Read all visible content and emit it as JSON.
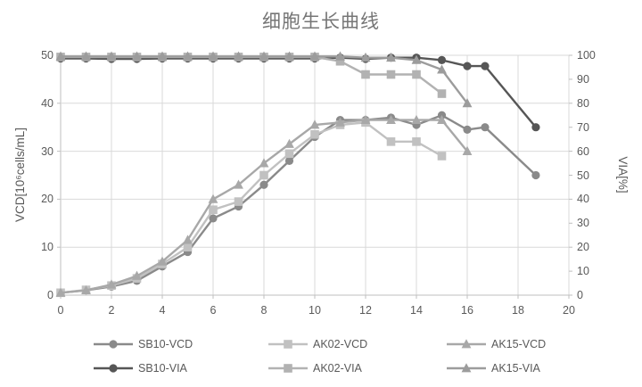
{
  "chart_data": {
    "type": "line",
    "title": "细胞生长曲线",
    "x_axis": {
      "min": 0,
      "max": 20,
      "ticks": [
        0,
        2,
        4,
        6,
        8,
        10,
        12,
        14,
        16,
        18,
        20
      ]
    },
    "y_left": {
      "label": "VCD[10⁶cells/mL]",
      "min": 0,
      "max": 50,
      "ticks": [
        0,
        10,
        20,
        30,
        40,
        50
      ]
    },
    "y_right": {
      "label": "VIA[%]",
      "min": 0,
      "max": 100,
      "ticks": [
        0,
        10,
        20,
        30,
        40,
        50,
        60,
        70,
        80,
        90,
        100
      ]
    },
    "grid": true,
    "legend_position": "bottom",
    "series": [
      {
        "name": "SB10-VCD",
        "axis": "left",
        "marker": "circle",
        "color": "#8a8a8a",
        "x": [
          0,
          1,
          2,
          3,
          4,
          5,
          6,
          7,
          8,
          9,
          10,
          11,
          12,
          13,
          14,
          15,
          16,
          16.7,
          18.7
        ],
        "values": [
          0.5,
          1,
          1.8,
          3,
          6,
          9,
          16,
          18.5,
          23,
          28,
          33,
          36.5,
          36.5,
          37,
          35.5,
          37.5,
          34.5,
          35,
          25
        ]
      },
      {
        "name": "AK02-VCD",
        "axis": "left",
        "marker": "square",
        "color": "#c1c1c1",
        "x": [
          0,
          1,
          2,
          3,
          4,
          5,
          6,
          7,
          8,
          9,
          10,
          11,
          12,
          13,
          14,
          15
        ],
        "values": [
          0.5,
          1.1,
          2,
          3.5,
          6.5,
          10,
          17.8,
          19.5,
          25,
          29.5,
          33.5,
          35.5,
          36,
          32,
          32,
          29
        ]
      },
      {
        "name": "AK15-VCD",
        "axis": "left",
        "marker": "triangle",
        "color": "#a8a8a8",
        "x": [
          0,
          1,
          2,
          3,
          4,
          5,
          6,
          7,
          8,
          9,
          10,
          11,
          12,
          13,
          14,
          15,
          16
        ],
        "values": [
          0.5,
          1,
          2.2,
          4,
          7,
          11.5,
          20,
          23,
          27.5,
          31.5,
          35.5,
          36,
          36.5,
          36.5,
          36.5,
          36.5,
          30
        ]
      },
      {
        "name": "SB10-VIA",
        "axis": "right",
        "marker": "circle",
        "color": "#565656",
        "x": [
          0,
          1,
          2,
          3,
          4,
          5,
          6,
          7,
          8,
          9,
          10,
          11,
          12,
          13,
          14,
          15,
          16,
          16.7,
          18.7
        ],
        "values": [
          98.7,
          98.7,
          98.5,
          98.5,
          98.7,
          98.7,
          98.7,
          98.7,
          98.7,
          98.7,
          98.7,
          99,
          98.5,
          99,
          99,
          98,
          95.5,
          95.5,
          70
        ]
      },
      {
        "name": "AK02-VIA",
        "axis": "right",
        "marker": "square",
        "color": "#b2b2b2",
        "x": [
          0,
          1,
          2,
          3,
          4,
          5,
          6,
          7,
          8,
          9,
          10,
          11,
          12,
          13,
          14,
          15
        ],
        "values": [
          99.3,
          99.3,
          99.3,
          99.3,
          99.3,
          99.3,
          99.3,
          99.3,
          99.3,
          99.3,
          99.3,
          97.5,
          92,
          92,
          92,
          84
        ]
      },
      {
        "name": "AK15-VIA",
        "axis": "right",
        "marker": "triangle",
        "color": "#9c9c9c",
        "x": [
          0,
          1,
          2,
          3,
          4,
          5,
          6,
          7,
          8,
          9,
          10,
          11,
          12,
          13,
          14,
          15,
          16
        ],
        "values": [
          99.5,
          99.5,
          99.5,
          99.5,
          99.5,
          99.5,
          99.5,
          99.5,
          99.5,
          99.5,
          99.5,
          99.5,
          99,
          99,
          98,
          94,
          80
        ]
      }
    ],
    "style": {
      "grid_color": "#d9d9d9",
      "axis_color": "#bfbfbf",
      "text_color": "#595959",
      "title_color": "#767676"
    }
  }
}
